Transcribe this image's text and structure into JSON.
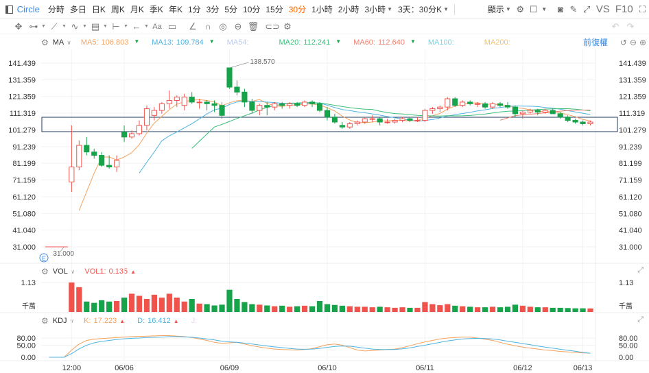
{
  "toolbar": {
    "symbol": "Circle",
    "periods": [
      "分時",
      "多日",
      "日K",
      "周K",
      "月K",
      "季K",
      "年K",
      "1分",
      "3分",
      "5分",
      "10分",
      "15分",
      "30分",
      "1小時",
      "2小時",
      "3小時"
    ],
    "active_period": "30分",
    "range_label": "3天：30分K",
    "display_label": "顯示",
    "vs_label": "VS",
    "f10_label": "F10"
  },
  "ma_legend": {
    "name": "MA",
    "items": [
      {
        "label": "MA5:",
        "value": "106.803",
        "color": "#f5a25d"
      },
      {
        "label": "MA13:",
        "value": "109.784",
        "color": "#4fb3e0"
      },
      {
        "label": "MA54:",
        "value": "",
        "color": "#c0cbe8"
      },
      {
        "label": "MA20:",
        "value": "112.241",
        "color": "#3cbf7a"
      },
      {
        "label": "MA60:",
        "value": "112.640",
        "color": "#f07f6c"
      },
      {
        "label": "MA100:",
        "value": "",
        "color": "#6fd6e6"
      },
      {
        "label": "MA200:",
        "value": "",
        "color": "#f5c46a"
      }
    ],
    "fq_label": "前復權"
  },
  "vol_legend": {
    "name": "VOL",
    "label": "VOL1:",
    "value": "0.135"
  },
  "kdj_legend": {
    "name": "KDJ",
    "k_label": "K:",
    "k_value": "17.223",
    "d_label": "D:",
    "d_value": "16.412",
    "j_label": "J:"
  },
  "price_axis": [
    "141.439",
    "131.359",
    "121.359",
    "111.319",
    "101.279",
    "91.239",
    "81.199",
    "71.159",
    "61.120",
    "51.080",
    "41.040",
    "31.000"
  ],
  "vol_axis": [
    "1.13"
  ],
  "vol_unit": "千萬",
  "kdj_axis": [
    "80.00",
    "50.00",
    "0.00"
  ],
  "time_axis": [
    "12:00",
    "06/06",
    "06/09",
    "06/10",
    "06/11",
    "06/12",
    "06/13"
  ],
  "annotations": {
    "high": "138.570",
    "low": "31.000"
  },
  "colors": {
    "up": "#f0524c",
    "down": "#16a34a",
    "accent": "#ff6600",
    "link": "#3d8ae4"
  },
  "chart_data": {
    "type": "candlestick",
    "price_range": [
      31.0,
      141.439
    ],
    "ohlc": [
      [
        31.0,
        31.0,
        31.0,
        31.0
      ],
      [
        31.0,
        31.0,
        31.0,
        31.0
      ],
      [
        31.0,
        31.0,
        31.0,
        31.0
      ],
      [
        70,
        104,
        64,
        79
      ],
      [
        79,
        95,
        77,
        92
      ],
      [
        92,
        97,
        86,
        88
      ],
      [
        88,
        90,
        84,
        86
      ],
      [
        86,
        88,
        79,
        80
      ],
      [
        80,
        86,
        78,
        79
      ],
      [
        79,
        86,
        76,
        83
      ],
      [
        100,
        104,
        94,
        97
      ],
      [
        97,
        101,
        96,
        99
      ],
      [
        99,
        107,
        98,
        104
      ],
      [
        104,
        116,
        101,
        114
      ],
      [
        110,
        115,
        107,
        113
      ],
      [
        113,
        118,
        111,
        117
      ],
      [
        117,
        125,
        114,
        119
      ],
      [
        119,
        122,
        115,
        121
      ],
      [
        116,
        123,
        113,
        121
      ],
      [
        121,
        124,
        117,
        118
      ],
      [
        118,
        120,
        114,
        118
      ],
      [
        118,
        119,
        113,
        117
      ],
      [
        117,
        119,
        112,
        116
      ],
      [
        116,
        118,
        108,
        110
      ],
      [
        138.57,
        138.57,
        126,
        127
      ],
      [
        127,
        131,
        122,
        124
      ],
      [
        124,
        126,
        115,
        118
      ],
      [
        118,
        120,
        111,
        113
      ],
      [
        113,
        117,
        110,
        116
      ],
      [
        116,
        118,
        110,
        115
      ],
      [
        115,
        118,
        113,
        117
      ],
      [
        117,
        118,
        114,
        116
      ],
      [
        116,
        118,
        114,
        117
      ],
      [
        117,
        118,
        115,
        116
      ],
      [
        116,
        119,
        115,
        118
      ],
      [
        118,
        119,
        115,
        117
      ],
      [
        117,
        118,
        112,
        113
      ],
      [
        113,
        115,
        107,
        109
      ],
      [
        109,
        111,
        105,
        106
      ],
      [
        104,
        106,
        102,
        103
      ],
      [
        103,
        106,
        102,
        105
      ],
      [
        105,
        107,
        104,
        106
      ],
      [
        106,
        109,
        105,
        108
      ],
      [
        108,
        110,
        106,
        108
      ],
      [
        108,
        109,
        104,
        106
      ],
      [
        106,
        108,
        105,
        106
      ],
      [
        106,
        108,
        105,
        107
      ],
      [
        107,
        109,
        106,
        108
      ],
      [
        108,
        109,
        106,
        107
      ],
      [
        107,
        109,
        106,
        107
      ],
      [
        107,
        114,
        106,
        113
      ],
      [
        113,
        115,
        111,
        114
      ],
      [
        114,
        116,
        112,
        115
      ],
      [
        115,
        121,
        113,
        120
      ],
      [
        120,
        121,
        115,
        116
      ],
      [
        116,
        119,
        115,
        118
      ],
      [
        118,
        119,
        116,
        117
      ],
      [
        117,
        118,
        115,
        117
      ],
      [
        117,
        118,
        114,
        115
      ],
      [
        115,
        118,
        114,
        117
      ],
      [
        117,
        118,
        115,
        116
      ],
      [
        116,
        118,
        114,
        115
      ],
      [
        115,
        116,
        109,
        111
      ],
      [
        111,
        113,
        108,
        112
      ],
      [
        112,
        114,
        111,
        113
      ],
      [
        113,
        114,
        110,
        112
      ],
      [
        112,
        114,
        111,
        113
      ],
      [
        113,
        114,
        111,
        111
      ],
      [
        111,
        112,
        108,
        109
      ],
      [
        109,
        110,
        106,
        107
      ],
      [
        107,
        108,
        105,
        106
      ],
      [
        106,
        107,
        104,
        105
      ],
      [
        105,
        107,
        104,
        106
      ]
    ],
    "volume": [
      0,
      0,
      0,
      1.13,
      0.95,
      0.4,
      0.35,
      0.45,
      0.4,
      0.42,
      0.55,
      0.7,
      0.62,
      0.5,
      0.66,
      0.55,
      0.7,
      0.55,
      0.4,
      0.5,
      0.32,
      0.3,
      0.25,
      0.28,
      0.85,
      0.5,
      0.38,
      0.3,
      0.28,
      0.25,
      0.22,
      0.24,
      0.2,
      0.22,
      0.24,
      0.22,
      0.42,
      0.3,
      0.27,
      0.24,
      0.22,
      0.2,
      0.2,
      0.18,
      0.2,
      0.18,
      0.16,
      0.18,
      0.16,
      0.16,
      0.38,
      0.3,
      0.26,
      0.3,
      0.24,
      0.22,
      0.2,
      0.18,
      0.18,
      0.2,
      0.18,
      0.2,
      0.28,
      0.24,
      0.2,
      0.18,
      0.18,
      0.16,
      0.16,
      0.15,
      0.14,
      0.14,
      0.135
    ],
    "kdj_k": [
      0,
      0,
      0,
      30,
      55,
      70,
      75,
      78,
      80,
      82,
      84,
      86,
      87,
      88,
      89,
      90,
      90,
      88,
      86,
      82,
      76,
      70,
      62,
      58,
      60,
      62,
      55,
      48,
      42,
      38,
      34,
      32,
      31,
      30,
      32,
      36,
      44,
      52,
      55,
      50,
      40,
      30,
      26,
      28,
      30,
      32,
      34,
      40,
      48,
      56,
      64,
      70,
      76,
      80,
      82,
      84,
      84,
      80,
      75,
      70,
      62,
      54,
      48,
      42,
      38,
      34,
      30,
      28,
      24,
      22,
      20,
      18,
      17.2
    ],
    "kdj_d": [
      0,
      0,
      0,
      15,
      35,
      50,
      60,
      66,
      70,
      74,
      77,
      79,
      80,
      82,
      83,
      84,
      86,
      86,
      85,
      83,
      80,
      76,
      72,
      67,
      64,
      62,
      59,
      55,
      51,
      47,
      43,
      40,
      37,
      34,
      33,
      34,
      37,
      41,
      45,
      47,
      46,
      42,
      38,
      34,
      32,
      32,
      32,
      35,
      39,
      45,
      50,
      56,
      62,
      68,
      72,
      76,
      78,
      79,
      78,
      76,
      72,
      67,
      62,
      57,
      52,
      47,
      42,
      38,
      33,
      29,
      25,
      20,
      16.4
    ]
  }
}
